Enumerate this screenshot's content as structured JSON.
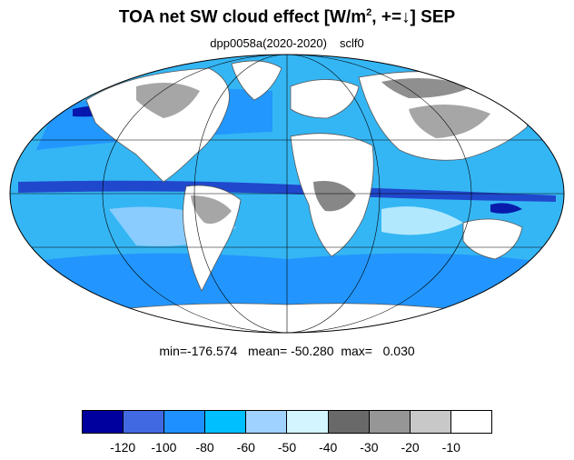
{
  "title": {
    "main": "TOA net SW cloud effect [W/m",
    "sup": "2",
    "rest": ", +=↓]  SEP"
  },
  "subtitle": {
    "run": "dpp0058a(2020-2020)",
    "var": "sclf0"
  },
  "stats": "min=-176.574   mean= -50.280  max=   0.030",
  "map": {
    "projection": "Mollweide",
    "ocean_color": "#35b6f4",
    "land_color": "#ffffff",
    "graticule_color": "#000000"
  },
  "colorbar": {
    "colors": [
      "#00009e",
      "#4169e1",
      "#1e90ff",
      "#00bfff",
      "#a0d2ff",
      "#d2f5ff",
      "#696969",
      "#969696",
      "#c8c8c8",
      "#ffffff"
    ],
    "labels": [
      "-120",
      "-100",
      "-80",
      "-60",
      "-50",
      "-40",
      "-30",
      "-20",
      "-10"
    ]
  }
}
